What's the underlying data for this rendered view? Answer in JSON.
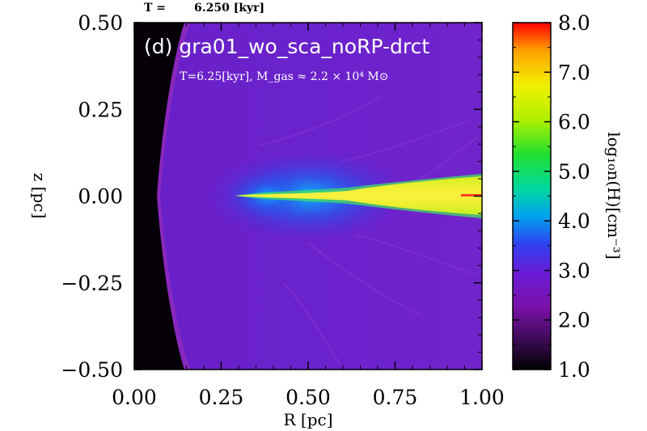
{
  "header": {
    "time_label": "T =",
    "time_value": "6.250 [kyr]"
  },
  "panel": {
    "title": "(d) gra01_wo_sca_noRP-drct",
    "subtitle": "T=6.25[kyr], M_gas ≈ 2.2 × 10⁴ M⊙"
  },
  "chart_data": {
    "type": "heatmap",
    "title": "(d) gra01_wo_sca_noRP-drct",
    "xlabel": "R [pc]",
    "ylabel": "z [pc]",
    "xlim": [
      0.0,
      1.0
    ],
    "ylim": [
      -0.5,
      0.5
    ],
    "x_ticks": [
      "0.00",
      "0.25",
      "0.50",
      "0.75",
      "1.00"
    ],
    "y_ticks": [
      "0.50",
      "0.25",
      "0.00",
      "−0.25",
      "−0.50"
    ],
    "x_tick_values": [
      0.0,
      0.25,
      0.5,
      0.75,
      1.0
    ],
    "y_tick_values": [
      0.5,
      0.25,
      0.0,
      -0.25,
      -0.5
    ],
    "colorbar": {
      "label": "log₁₀n(H)[cm⁻³]",
      "range": [
        1.0,
        8.0
      ],
      "ticks": [
        "8.0",
        "7.0",
        "6.0",
        "5.0",
        "4.0",
        "3.0",
        "2.0",
        "1.0"
      ],
      "tick_values": [
        8,
        7,
        6,
        5,
        4,
        3,
        2,
        1
      ],
      "colormap": [
        "#000000",
        "#3a0a50",
        "#7a10a8",
        "#6a1cd8",
        "#3040f0",
        "#00a0f0",
        "#00d8a0",
        "#20e030",
        "#b0f000",
        "#f0f000",
        "#ffa000",
        "#ff0000"
      ]
    },
    "features": {
      "background_density": 2.3,
      "disk_density": 7.0,
      "disk_inner_edge_R": 0.29,
      "cavity_outer_R": 0.18
    }
  }
}
